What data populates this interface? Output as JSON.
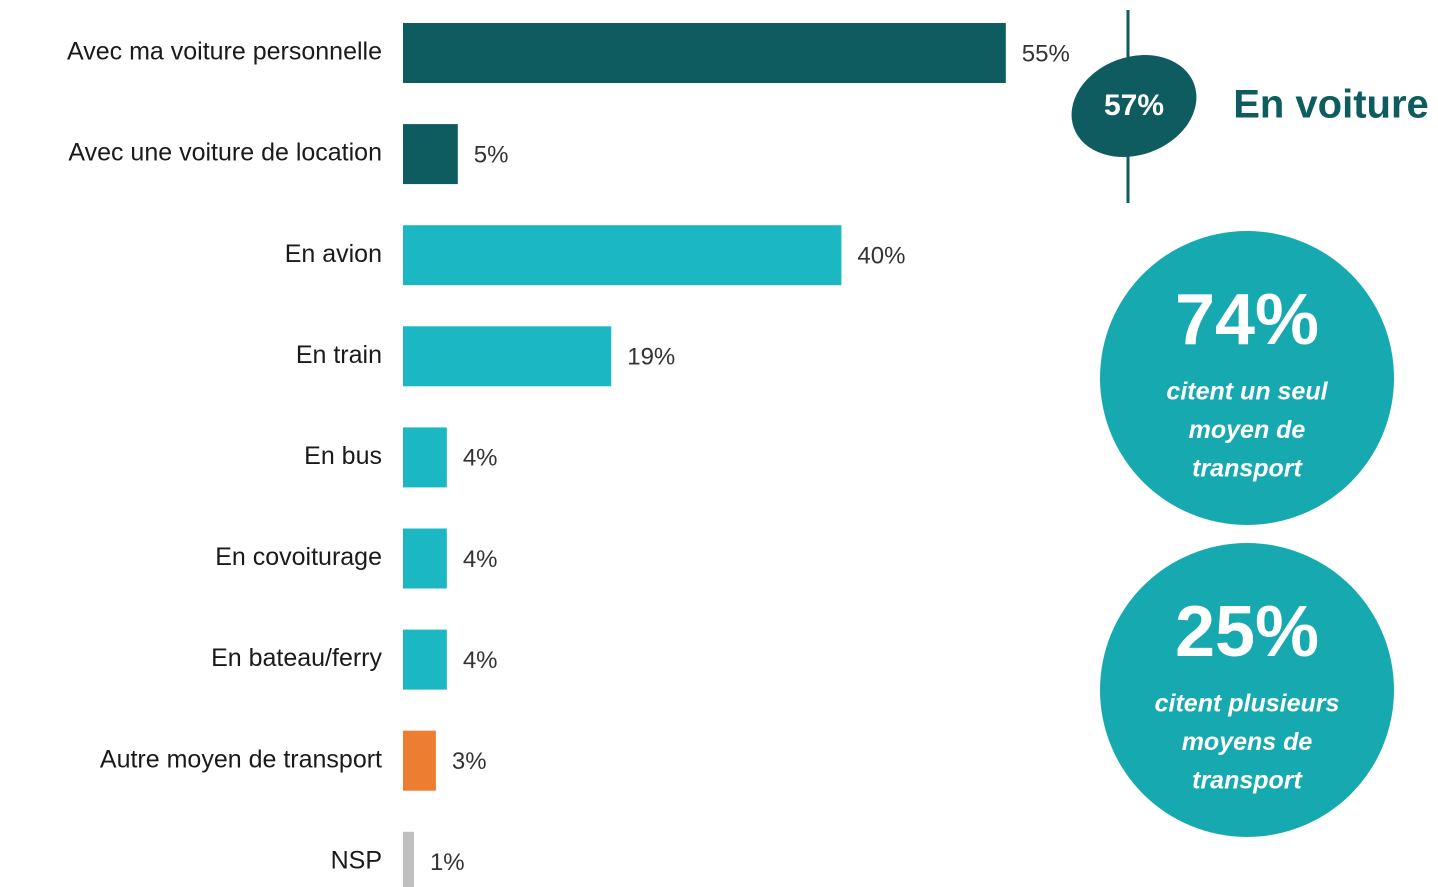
{
  "chart_data": {
    "type": "bar",
    "orientation": "horizontal",
    "categories": [
      "Avec ma voiture personnelle",
      "Avec une voiture de location",
      "En avion",
      "En train",
      "En bus",
      "En covoiturage",
      "En bateau/ferry",
      "Autre moyen de transport",
      "NSP"
    ],
    "values": [
      55,
      5,
      40,
      19,
      4,
      4,
      4,
      3,
      1
    ],
    "value_labels": [
      "55%",
      "5%",
      "40%",
      "19%",
      "4%",
      "4%",
      "4%",
      "3%",
      "1%"
    ],
    "colors": [
      "#0e5c5f",
      "#0e5c5f",
      "#1bb8c3",
      "#1bb8c3",
      "#1bb8c3",
      "#1bb8c3",
      "#1bb8c3",
      "#ed7d31",
      "#bfbfbf"
    ],
    "annotations": {
      "car": {
        "figure": "57%",
        "label": "En voiture"
      },
      "single": {
        "figure": "74%",
        "lines": [
          "citent un seul",
          "moyen de",
          "transport"
        ]
      },
      "multiple": {
        "figure": "25%",
        "lines": [
          "citent plusieurs",
          "moyens de",
          "transport"
        ]
      }
    }
  }
}
